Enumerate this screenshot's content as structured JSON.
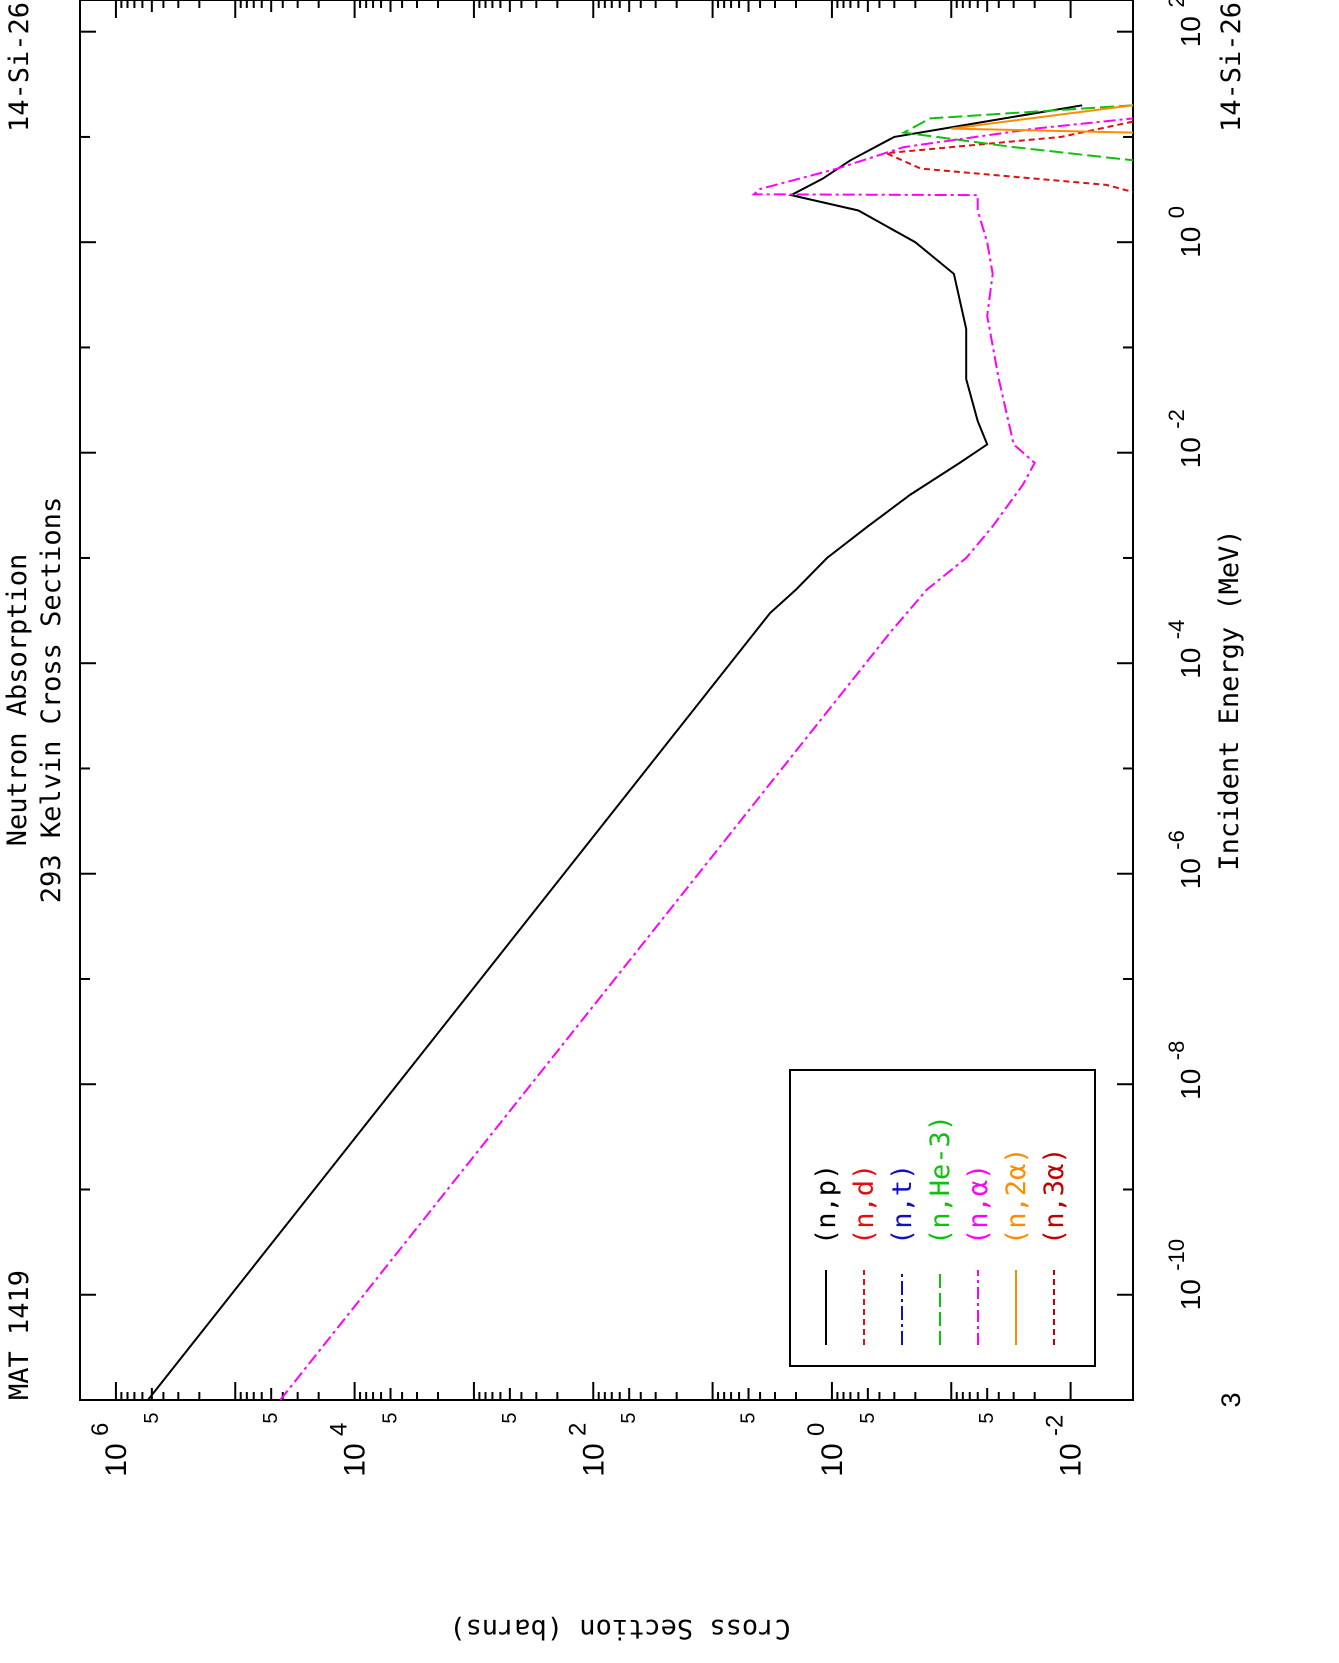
{
  "header": {
    "mat_label": "MAT 1419",
    "title_line1": "Neutron Absorption",
    "title_line2": "293 Kelvin Cross Sections",
    "material_top": "14-Si-26",
    "material_bottom": "14-Si-26"
  },
  "chart_data": {
    "type": "line",
    "orientation": "rotated-90-clockwise",
    "title": "Neutron Absorption",
    "subtitle": "293 Kelvin Cross Sections",
    "xlabel": "Incident Energy (MeV)",
    "ylabel": "Cross Section (barns)",
    "x_scale": "log",
    "y_scale": "log",
    "xlim": [
      1e-11,
      200
    ],
    "ylim": [
      0.003,
      2000000
    ],
    "x_ticks": [
      {
        "exp": "-10",
        "base": "10",
        "value": 1e-10
      },
      {
        "exp": "-8",
        "base": "10",
        "value": 1e-08
      },
      {
        "exp": "-6",
        "base": "10",
        "value": 1e-06
      },
      {
        "exp": "-4",
        "base": "10",
        "value": 0.0001
      },
      {
        "exp": "-2",
        "base": "10",
        "value": 0.01
      },
      {
        "exp": "0",
        "base": "10",
        "value": 1
      },
      {
        "exp": "2",
        "base": "10",
        "value": 100
      }
    ],
    "x_tick_start_label": "3",
    "y_ticks": [
      {
        "exp": "6",
        "base": "10",
        "value": 1000000.0
      },
      {
        "exp": "4",
        "base": "10",
        "value": 10000.0
      },
      {
        "exp": "2",
        "base": "10",
        "value": 100.0
      },
      {
        "exp": "0",
        "base": "10",
        "value": 1
      },
      {
        "exp": "-2",
        "base": "10",
        "value": 0.01
      }
    ],
    "y_minor_labels": [
      {
        "label": "5",
        "value": 500000
      },
      {
        "label": "5",
        "value": 50000
      },
      {
        "label": "5",
        "value": 5000
      },
      {
        "label": "5",
        "value": 500
      },
      {
        "label": "5",
        "value": 50
      },
      {
        "label": "5",
        "value": 5
      },
      {
        "label": "5",
        "value": 0.5
      },
      {
        "label": "5",
        "value": 0.05
      }
    ],
    "legend_position": "bottom-right",
    "series": [
      {
        "name": "(n,p)",
        "color": "#000000",
        "dash": "",
        "points": [
          [
            1e-11,
            540000
          ],
          [
            0.0003,
            3.3
          ],
          [
            0.0005,
            2.0
          ],
          [
            0.001,
            1.1
          ],
          [
            0.002,
            0.5
          ],
          [
            0.004,
            0.22
          ],
          [
            0.008,
            0.085
          ],
          [
            0.012,
            0.05
          ],
          [
            0.02,
            0.06
          ],
          [
            0.05,
            0.075
          ],
          [
            0.15,
            0.075
          ],
          [
            0.5,
            0.095
          ],
          [
            1.0,
            0.2
          ],
          [
            2.0,
            0.6
          ],
          [
            2.8,
            2.2
          ],
          [
            4.0,
            1.2
          ],
          [
            6.0,
            0.7
          ],
          [
            10.0,
            0.3
          ],
          [
            20.0,
            0.008
          ]
        ]
      },
      {
        "name": "(n,d)",
        "color": "#e01010",
        "dash": "6,4",
        "points": [
          [
            14.0,
            0.003
          ],
          [
            10.0,
            0.012
          ],
          [
            7.0,
            0.35
          ],
          [
            5.0,
            0.18
          ],
          [
            3.5,
            0.005
          ],
          [
            3.0,
            0.003
          ]
        ]
      },
      {
        "name": "(n,t)",
        "color": "#1010c0",
        "dash": "14,4,3,4",
        "points": []
      },
      {
        "name": "(n,He-3)",
        "color": "#10c010",
        "dash": "14,5",
        "points": [
          [
            20.0,
            0.003
          ],
          [
            15.0,
            0.15
          ],
          [
            11.0,
            0.25
          ],
          [
            8.0,
            0.03
          ],
          [
            6.0,
            0.003
          ]
        ]
      },
      {
        "name": "(n,α)",
        "color": "#ff00ff",
        "dash": "12,4,3,4",
        "points": [
          [
            1e-11,
            42000
          ],
          [
            0.0002,
            0.32
          ],
          [
            0.0005,
            0.16
          ],
          [
            0.001,
            0.075
          ],
          [
            0.002,
            0.045
          ],
          [
            0.005,
            0.025
          ],
          [
            0.008,
            0.02
          ],
          [
            0.012,
            0.03
          ],
          [
            0.05,
            0.04
          ],
          [
            0.2,
            0.05
          ],
          [
            0.5,
            0.045
          ],
          [
            1.0,
            0.05
          ],
          [
            2.0,
            0.06
          ],
          [
            2.8,
            0.06
          ],
          [
            2.85,
            4.5
          ],
          [
            3.2,
            4.0
          ],
          [
            5.0,
            0.9
          ],
          [
            8.0,
            0.25
          ],
          [
            12.0,
            0.02
          ],
          [
            15.0,
            0.003
          ]
        ]
      },
      {
        "name": "(n,2α)",
        "color": "#ff8c00",
        "dash": "",
        "points": [
          [
            20.0,
            0.003
          ],
          [
            12.0,
            0.1
          ],
          [
            11.0,
            0.003
          ]
        ]
      },
      {
        "name": "(n,3α)",
        "color": "#c00000",
        "dash": "6,4",
        "points": []
      }
    ]
  }
}
